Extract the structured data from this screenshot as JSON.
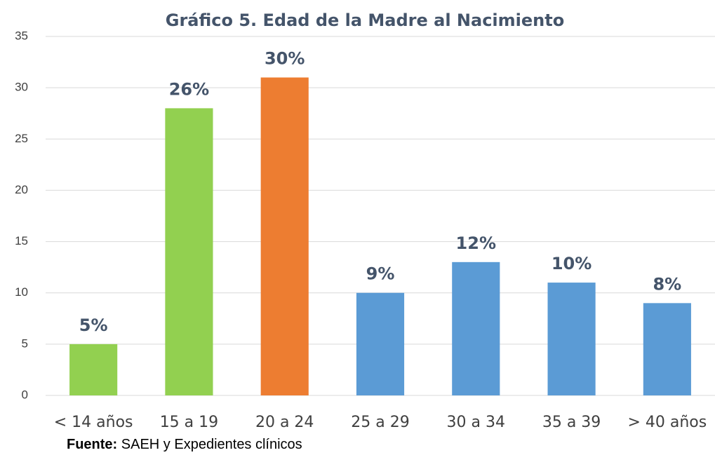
{
  "chart_data": {
    "type": "bar",
    "title": "Gráfico 5. Edad de la Madre al Nacimiento",
    "categories": [
      "< 14 años",
      "15 a 19",
      "20 a 24",
      "25 a 29",
      "30 a 34",
      "35 a 39",
      "> 40 años"
    ],
    "values": [
      5,
      28,
      31,
      10,
      13,
      11,
      9
    ],
    "data_labels": [
      "5%",
      "26%",
      "30%",
      "9%",
      "12%",
      "10%",
      "8%"
    ],
    "colors": [
      "#92d050",
      "#92d050",
      "#ed7d31",
      "#5b9bd5",
      "#5b9bd5",
      "#5b9bd5",
      "#5b9bd5"
    ],
    "ylim": [
      0,
      35
    ],
    "yticks": [
      0,
      5,
      10,
      15,
      20,
      25,
      30,
      35
    ],
    "grid": true,
    "source": {
      "label": "Fuente:",
      "text": "SAEH y Expedientes clínicos"
    }
  }
}
